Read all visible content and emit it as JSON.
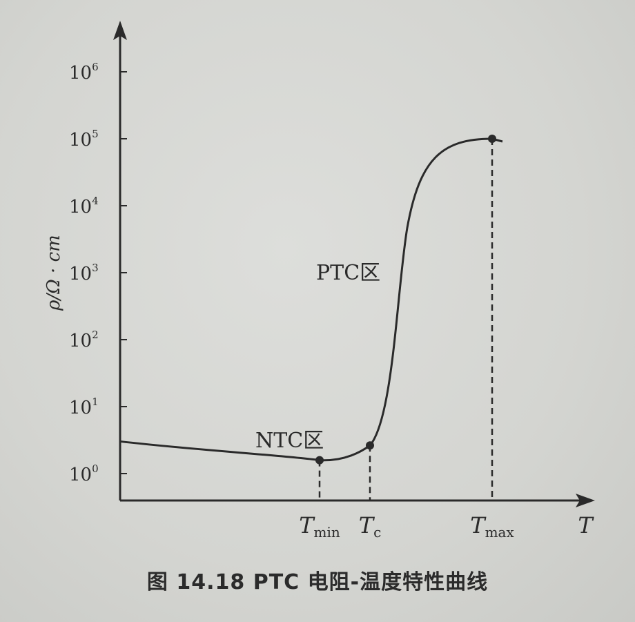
{
  "caption": "图 14.18   PTC 电阻-温度特性曲线",
  "chart_data": {
    "type": "line",
    "title": "",
    "ylabel": "ρ/Ω · cm",
    "xlabel": "T",
    "y_scale": "log",
    "y_ticks": [
      {
        "base": "10",
        "exp": "0"
      },
      {
        "base": "10",
        "exp": "1"
      },
      {
        "base": "10",
        "exp": "2"
      },
      {
        "base": "10",
        "exp": "3"
      },
      {
        "base": "10",
        "exp": "4"
      },
      {
        "base": "10",
        "exp": "5"
      },
      {
        "base": "10",
        "exp": "6"
      }
    ],
    "x_markers": [
      {
        "main": "T",
        "sub": "min"
      },
      {
        "main": "T",
        "sub": "c"
      },
      {
        "main": "T",
        "sub": "max"
      }
    ],
    "annotations": [
      "NTC区",
      "PTC区"
    ],
    "grid": false,
    "legend": "none",
    "curve_log10_rho": {
      "start": 0.48,
      "at_Tmin": 0.2,
      "at_Tc": 0.42,
      "at_Tmax": 5.0
    }
  }
}
